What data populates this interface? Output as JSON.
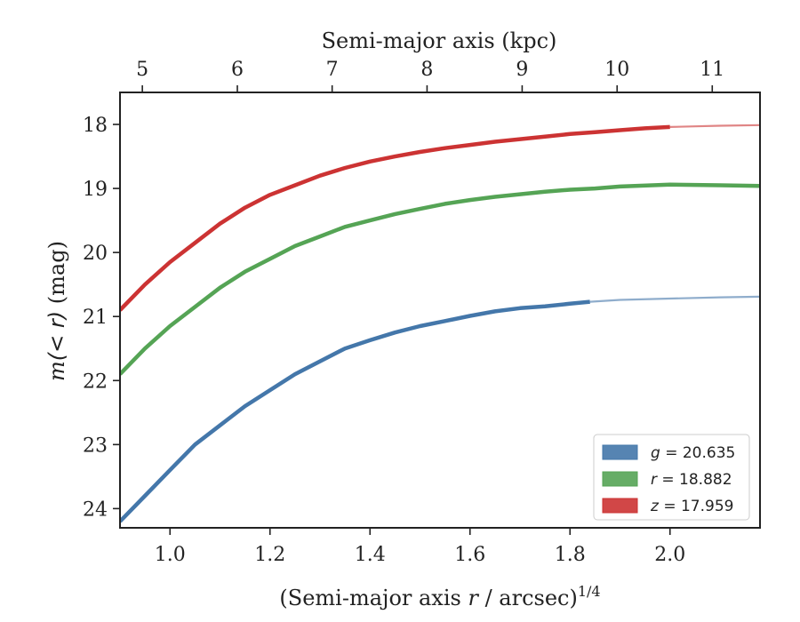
{
  "chart_data": {
    "type": "line",
    "xlabel_prefix": "(Semi-major axis ",
    "xlabel_var": "r",
    "xlabel_suffix": " / arcsec)",
    "xlabel_sup": "1/4",
    "ylabel_var": "m",
    "ylabel_math": "(< r)",
    "ylabel_unit": " (mag)",
    "top_xlabel": "Semi-major axis (kpc)",
    "xlim": [
      0.9,
      2.18
    ],
    "ylim": [
      24.3,
      17.5
    ],
    "y_inverted": true,
    "xticks": [
      1.0,
      1.2,
      1.4,
      1.6,
      1.8,
      2.0
    ],
    "xtick_labels": [
      "1.0",
      "1.2",
      "1.4",
      "1.6",
      "1.8",
      "2.0"
    ],
    "yticks": [
      18,
      19,
      20,
      21,
      22,
      23,
      24
    ],
    "ytick_labels": [
      "18",
      "19",
      "20",
      "21",
      "22",
      "23",
      "24"
    ],
    "top_ticks_kpc": [
      5,
      6,
      7,
      8,
      9,
      10,
      11
    ],
    "top_tick_labels": [
      "5",
      "6",
      "7",
      "8",
      "9",
      "10",
      "11"
    ],
    "legend_position": "lower-right",
    "series": [
      {
        "band": "g",
        "value": "20.635",
        "color": "#4477aa",
        "measured": [
          [
            0.9,
            24.2
          ],
          [
            0.95,
            23.8
          ],
          [
            1.0,
            23.4
          ],
          [
            1.05,
            23.0
          ],
          [
            1.1,
            22.7
          ],
          [
            1.15,
            22.4
          ],
          [
            1.2,
            22.15
          ],
          [
            1.25,
            21.9
          ],
          [
            1.3,
            21.7
          ],
          [
            1.35,
            21.5
          ],
          [
            1.4,
            21.37
          ],
          [
            1.45,
            21.25
          ],
          [
            1.5,
            21.15
          ],
          [
            1.55,
            21.07
          ],
          [
            1.6,
            20.99
          ],
          [
            1.65,
            20.92
          ],
          [
            1.7,
            20.87
          ],
          [
            1.75,
            20.84
          ],
          [
            1.8,
            20.8
          ],
          [
            1.84,
            20.77
          ]
        ],
        "model": [
          [
            1.84,
            20.77
          ],
          [
            1.9,
            20.74
          ],
          [
            2.0,
            20.72
          ],
          [
            2.1,
            20.7
          ],
          [
            2.18,
            20.69
          ]
        ]
      },
      {
        "band": "r",
        "value": "18.882",
        "color": "#55a455",
        "measured": [
          [
            0.9,
            21.9
          ],
          [
            0.95,
            21.5
          ],
          [
            1.0,
            21.15
          ],
          [
            1.05,
            20.85
          ],
          [
            1.1,
            20.55
          ],
          [
            1.15,
            20.3
          ],
          [
            1.2,
            20.1
          ],
          [
            1.25,
            19.9
          ],
          [
            1.3,
            19.75
          ],
          [
            1.35,
            19.6
          ],
          [
            1.4,
            19.5
          ],
          [
            1.45,
            19.4
          ],
          [
            1.5,
            19.32
          ],
          [
            1.55,
            19.24
          ],
          [
            1.6,
            19.18
          ],
          [
            1.65,
            19.13
          ],
          [
            1.7,
            19.09
          ],
          [
            1.75,
            19.05
          ],
          [
            1.8,
            19.02
          ],
          [
            1.85,
            19.0
          ],
          [
            1.9,
            18.97
          ],
          [
            2.0,
            18.94
          ],
          [
            2.1,
            18.95
          ],
          [
            2.18,
            18.96
          ]
        ]
      },
      {
        "band": "z",
        "value": "17.959",
        "color": "#cc3333",
        "measured": [
          [
            0.9,
            20.9
          ],
          [
            0.95,
            20.5
          ],
          [
            1.0,
            20.15
          ],
          [
            1.05,
            19.85
          ],
          [
            1.1,
            19.55
          ],
          [
            1.15,
            19.3
          ],
          [
            1.2,
            19.1
          ],
          [
            1.25,
            18.95
          ],
          [
            1.3,
            18.8
          ],
          [
            1.35,
            18.68
          ],
          [
            1.4,
            18.58
          ],
          [
            1.45,
            18.5
          ],
          [
            1.5,
            18.43
          ],
          [
            1.55,
            18.37
          ],
          [
            1.6,
            18.32
          ],
          [
            1.65,
            18.27
          ],
          [
            1.7,
            18.23
          ],
          [
            1.75,
            18.19
          ],
          [
            1.8,
            18.15
          ],
          [
            1.85,
            18.12
          ],
          [
            1.9,
            18.09
          ],
          [
            1.95,
            18.06
          ],
          [
            2.0,
            18.04
          ]
        ],
        "model": [
          [
            2.0,
            18.04
          ],
          [
            2.05,
            18.03
          ],
          [
            2.1,
            18.02
          ],
          [
            2.18,
            18.01
          ]
        ]
      }
    ]
  }
}
